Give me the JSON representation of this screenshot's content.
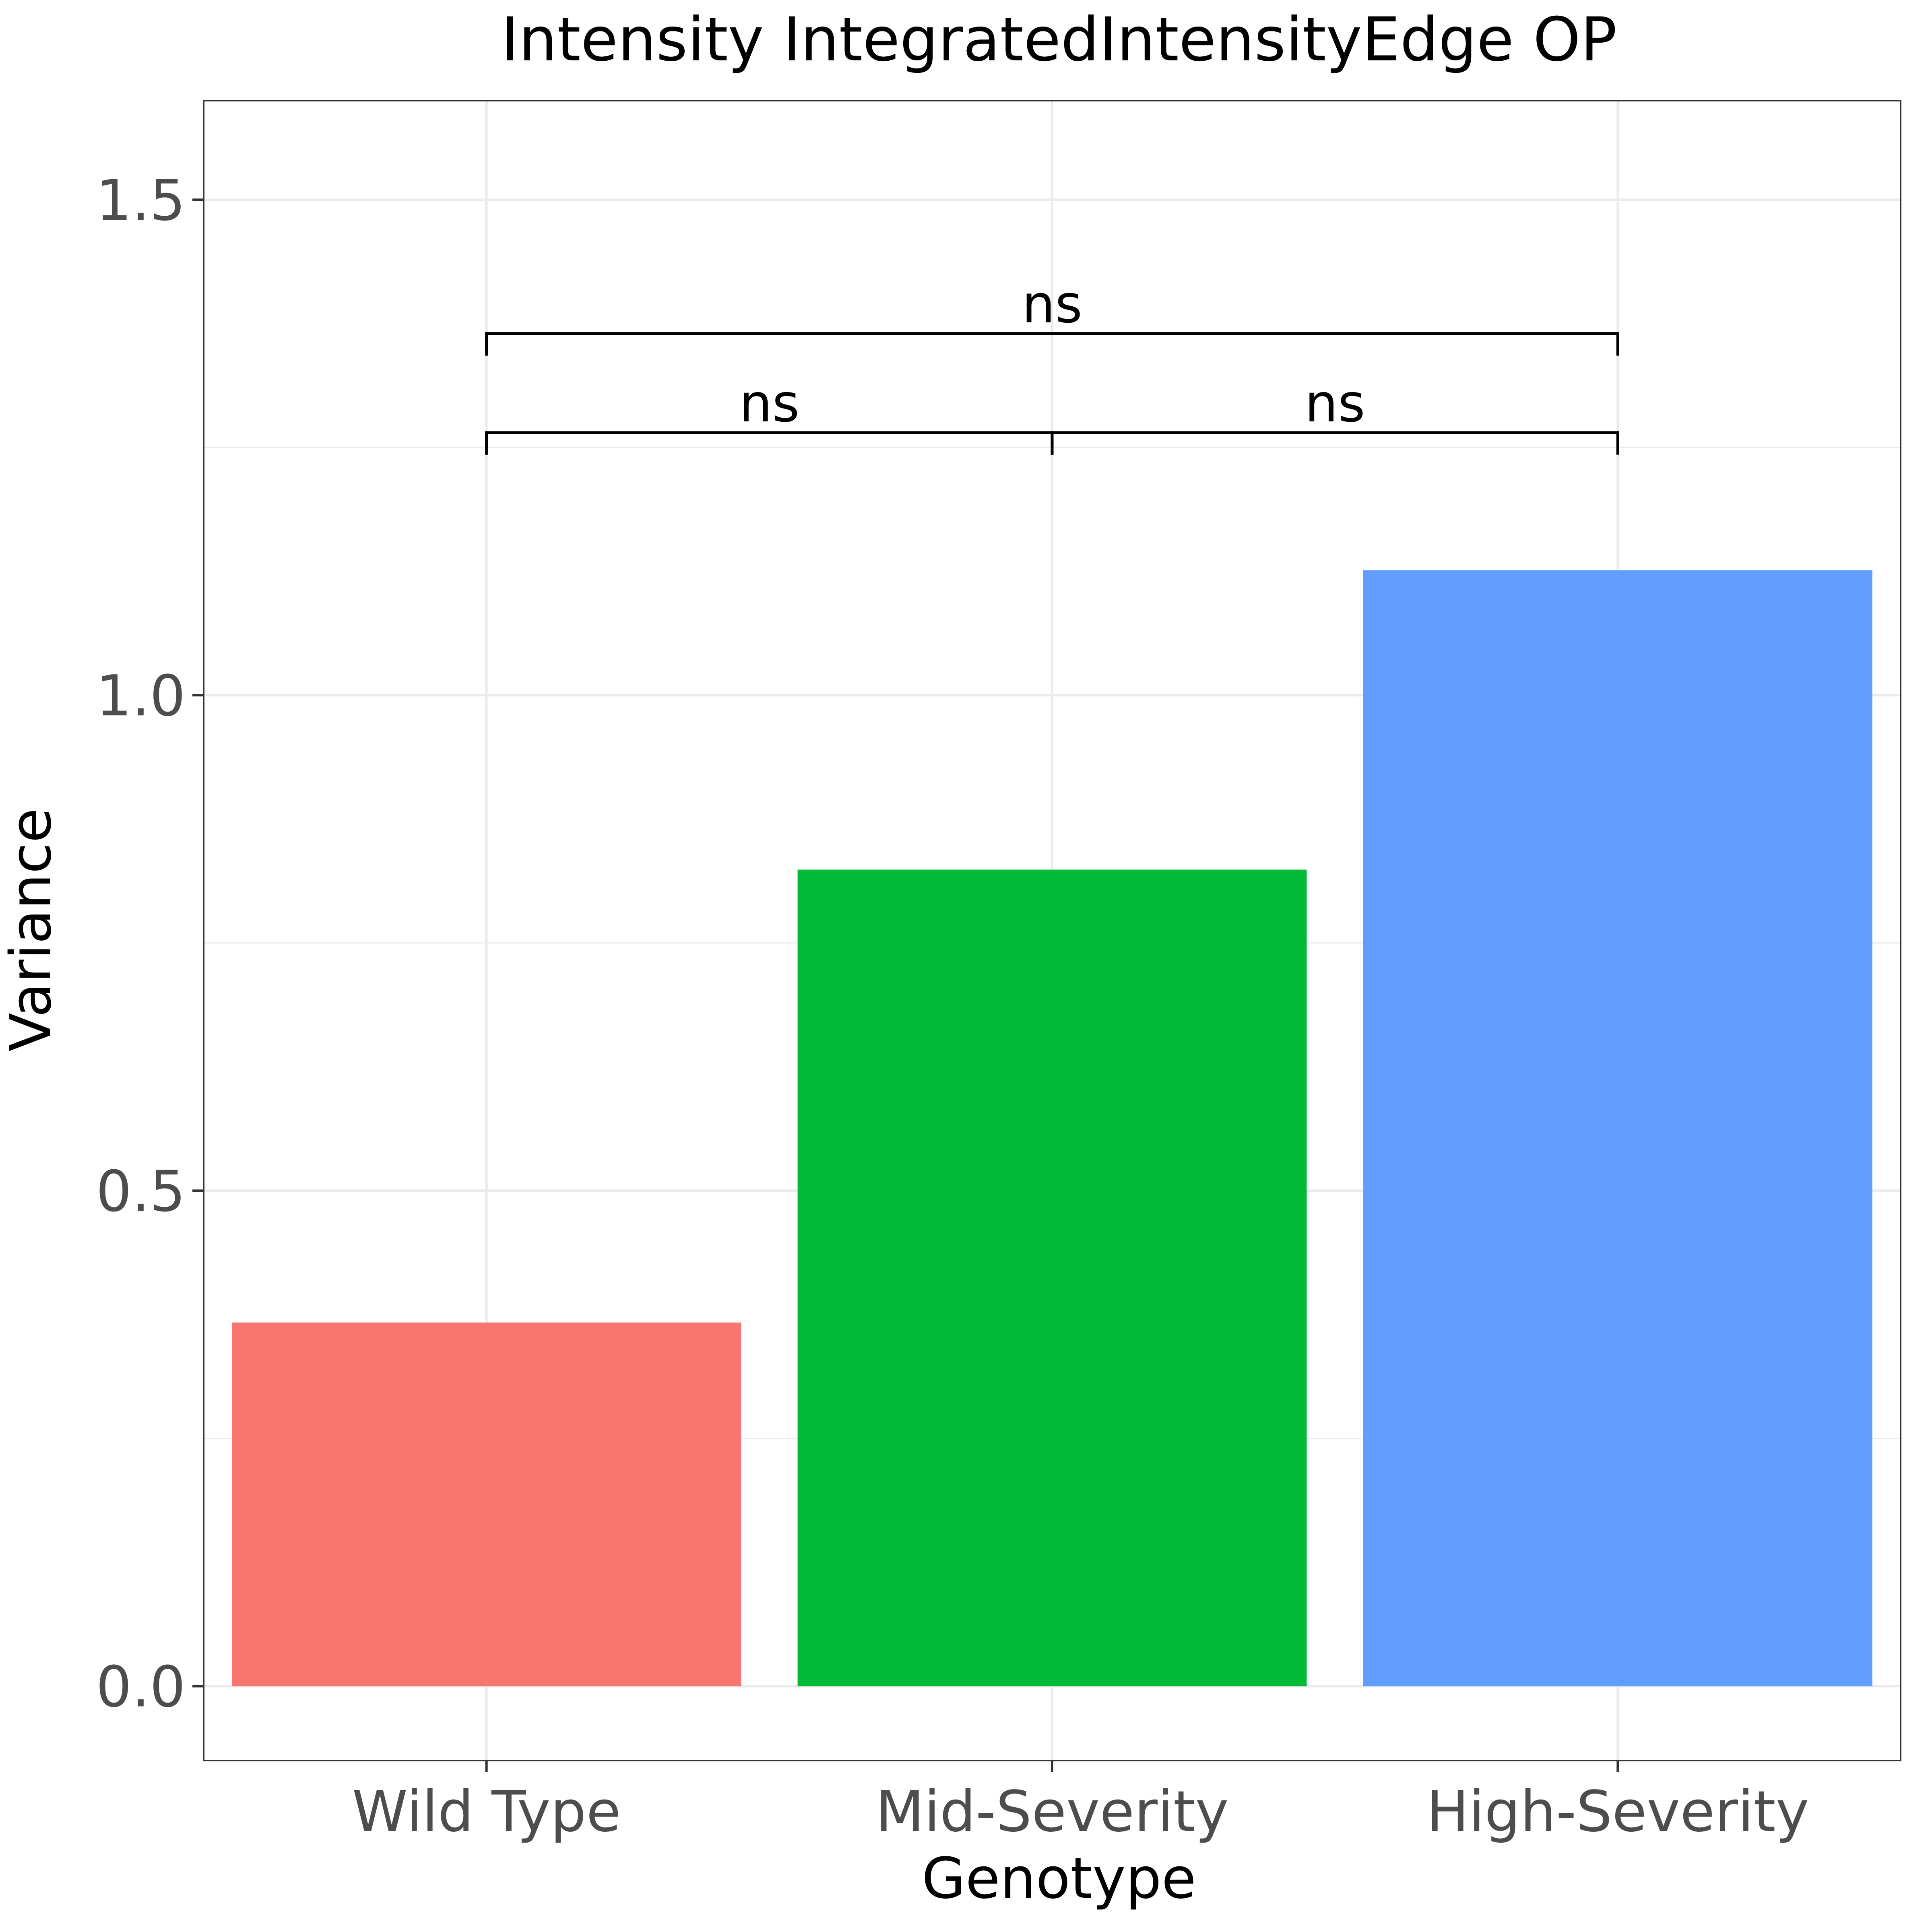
{
  "chart_data": {
    "type": "bar",
    "title": "Intensity IntegratedIntensityEdge OP",
    "xlabel": "Genotype",
    "ylabel": "Variance",
    "categories": [
      "Wild Type",
      "Mid-Severity",
      "High-Severity"
    ],
    "values": [
      0.367,
      0.824,
      1.126
    ],
    "colors": [
      "#F8766D",
      "#00BA38",
      "#619CFF"
    ],
    "ylim": [
      -0.075,
      1.6
    ],
    "yticks": [
      0.0,
      0.5,
      1.0,
      1.5
    ],
    "ytick_labels": [
      "0.0",
      "0.5",
      "1.0",
      "1.5"
    ],
    "grid": true,
    "legend": "none",
    "significance": [
      {
        "from": 0,
        "to": 1,
        "y": 1.265,
        "label": "ns"
      },
      {
        "from": 1,
        "to": 2,
        "y": 1.265,
        "label": "ns"
      },
      {
        "from": 0,
        "to": 2,
        "y": 1.365,
        "label": "ns"
      }
    ]
  }
}
